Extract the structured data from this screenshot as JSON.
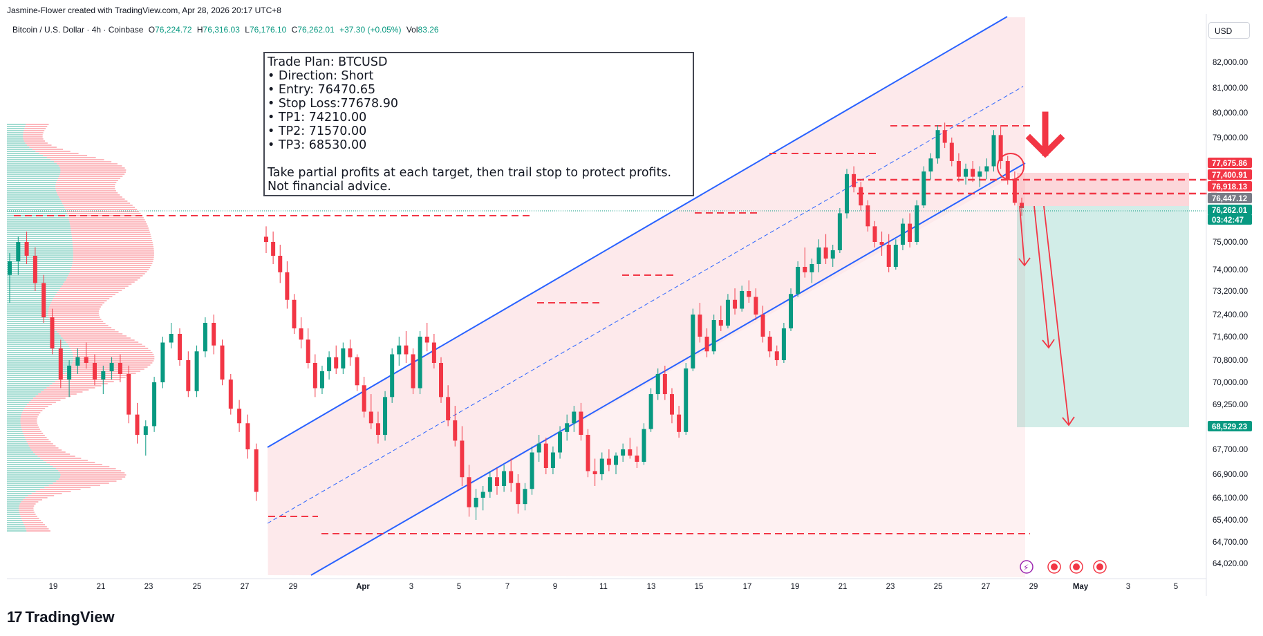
{
  "header": {
    "attribution": "Jasmine-Flower created with TradingView.com, Apr 28, 2026 20:17 UTC+8",
    "symbol": "Bitcoin / U.S. Dollar · 4h · Coinbase",
    "o_label": "O",
    "o": "76,224.72",
    "h_label": "H",
    "h": "76,316.03",
    "l_label": "L",
    "l": "76,176.10",
    "c_label": "C",
    "c": "76,262.01",
    "change": "+37.30 (+0.05%)",
    "vol_label": "Vol",
    "vol": "83.26",
    "currency": "USD"
  },
  "trade_plan": {
    "title": "Trade Plan: BTCUSD",
    "direction": "• Direction: Short",
    "entry": "• Entry: 76470.65",
    "stop": "• Stop Loss:77678.90",
    "tp1": "• TP1: 74210.00",
    "tp2": "• TP2: 71570.00",
    "tp3": "• TP3: 68530.00",
    "note1": "Take partial profits at each target, then trail stop to protect profits.",
    "note2": "Not financial advice."
  },
  "footer": {
    "brand": "TradingView"
  },
  "colors": {
    "up": "#089981",
    "down": "#f23645",
    "channel": "#2962ff",
    "zone_red": "#f23645",
    "zone_green": "#089981"
  },
  "chart_data": {
    "type": "candlestick",
    "timeframe": "4h",
    "y_ticks": [
      82000,
      81000,
      80000,
      79000,
      75000,
      74000,
      73200,
      72400,
      71600,
      70800,
      70000,
      69250,
      67700,
      66900,
      66100,
      65400,
      64700,
      64020
    ],
    "y_tick_labels": [
      "82,000.00",
      "81,000.00",
      "80,000.00",
      "79,000.00",
      "75,000.00",
      "74,000.00",
      "73,200.00",
      "72,400.00",
      "71,600.00",
      "70,800.00",
      "70,000.00",
      "69,250.00",
      "67,700.00",
      "66,900.00",
      "66,100.00",
      "65,400.00",
      "64,700.00",
      "64,020.00"
    ],
    "x_ticks": [
      "19",
      "21",
      "23",
      "25",
      "27",
      "29",
      "Apr",
      "3",
      "5",
      "7",
      "9",
      "11",
      "13",
      "15",
      "17",
      "19",
      "21",
      "23",
      "25",
      "27",
      "29",
      "May",
      "3",
      "5"
    ],
    "price_labels": [
      {
        "value": "77,675.86",
        "color": "#f23645"
      },
      {
        "value": "77,400.91",
        "color": "#f23645"
      },
      {
        "value": "76,918.13",
        "color": "#f23645"
      },
      {
        "value": "76,447.12",
        "color": "#787b86"
      },
      {
        "value": "76,262.01",
        "color": "#089981"
      },
      {
        "value": "03:42:47",
        "color": "#089981"
      },
      {
        "value": "68,529.23",
        "color": "#089981"
      }
    ],
    "levels": {
      "stop": 77678.9,
      "entry": 76470.65,
      "tp1": 74210,
      "tp2": 71570,
      "tp3": 68530,
      "last": 76262.01
    },
    "candles": [
      [
        75200,
        75600,
        74600,
        75000
      ],
      [
        75000,
        75400,
        74200,
        74500
      ],
      [
        74500,
        74900,
        73500,
        73900
      ],
      [
        73900,
        74300,
        72600,
        72900
      ],
      [
        72900,
        73100,
        71700,
        71900
      ],
      [
        71900,
        72300,
        71200,
        71500
      ],
      [
        71500,
        71900,
        70500,
        70700
      ],
      [
        70700,
        71000,
        69500,
        69800
      ],
      [
        69800,
        70600,
        69600,
        70400
      ],
      [
        70400,
        71100,
        70100,
        70900
      ],
      [
        70900,
        71300,
        70300,
        70500
      ],
      [
        70500,
        71400,
        70300,
        71200
      ],
      [
        71200,
        71500,
        70600,
        70900
      ],
      [
        70900,
        71000,
        69700,
        69900
      ],
      [
        69900,
        70200,
        68800,
        69000
      ],
      [
        69000,
        69600,
        68400,
        68600
      ],
      [
        68600,
        69000,
        67900,
        68200
      ],
      [
        68200,
        69700,
        68000,
        69500
      ],
      [
        69500,
        71200,
        69300,
        71000
      ],
      [
        71000,
        71600,
        70600,
        71300
      ],
      [
        71300,
        71800,
        70700,
        71000
      ],
      [
        71000,
        71200,
        69600,
        69800
      ],
      [
        69800,
        71800,
        69600,
        71600
      ],
      [
        71600,
        72100,
        71100,
        71400
      ],
      [
        71400,
        71700,
        70500,
        70700
      ],
      [
        70700,
        70900,
        69300,
        69500
      ],
      [
        69500,
        69900,
        68500,
        68700
      ],
      [
        68700,
        69200,
        67800,
        68000
      ],
      [
        68000,
        68500,
        66500,
        66800
      ],
      [
        66800,
        67200,
        65500,
        65800
      ],
      [
        65800,
        66400,
        65400,
        66100
      ],
      [
        66100,
        66500,
        65700,
        66300
      ],
      [
        66300,
        67000,
        66100,
        66800
      ],
      [
        66800,
        67100,
        66200,
        66500
      ],
      [
        66500,
        67200,
        66300,
        67000
      ],
      [
        67000,
        67400,
        66300,
        66600
      ],
      [
        66600,
        66900,
        65600,
        65900
      ],
      [
        65900,
        66600,
        65700,
        66400
      ],
      [
        66400,
        67800,
        66200,
        67600
      ],
      [
        67600,
        68200,
        67300,
        67900
      ],
      [
        67900,
        68100,
        66900,
        67100
      ],
      [
        67100,
        67800,
        66900,
        67600
      ],
      [
        67600,
        68500,
        67400,
        68300
      ],
      [
        68300,
        68900,
        68000,
        68600
      ],
      [
        68600,
        69200,
        68300,
        69000
      ],
      [
        69000,
        69300,
        68000,
        68200
      ],
      [
        68200,
        68400,
        66800,
        67000
      ],
      [
        67000,
        67400,
        66500,
        66900
      ],
      [
        66900,
        67600,
        66700,
        67400
      ],
      [
        67400,
        67700,
        67000,
        67200
      ],
      [
        67200,
        67600,
        66900,
        67500
      ],
      [
        67500,
        67900,
        67300,
        67700
      ],
      [
        67700,
        68100,
        67400,
        67500
      ],
      [
        67500,
        67800,
        67100,
        67300
      ],
      [
        67300,
        68600,
        67200,
        68400
      ],
      [
        68400,
        69800,
        68300,
        69600
      ],
      [
        69600,
        70500,
        69400,
        70300
      ],
      [
        70300,
        70600,
        69400,
        69600
      ],
      [
        69600,
        69800,
        68600,
        68900
      ],
      [
        68900,
        69200,
        68100,
        68300
      ],
      [
        68300,
        70700,
        68200,
        70500
      ],
      [
        70500,
        72600,
        70400,
        72400
      ],
      [
        72400,
        72800,
        71400,
        71600
      ],
      [
        71600,
        71900,
        70900,
        71100
      ],
      [
        71100,
        72400,
        71000,
        72200
      ],
      [
        72200,
        72700,
        71800,
        72000
      ],
      [
        72000,
        73100,
        71900,
        72900
      ],
      [
        72900,
        73300,
        72400,
        72600
      ],
      [
        72600,
        73400,
        72500,
        73200
      ],
      [
        73200,
        73600,
        72800,
        73000
      ],
      [
        73000,
        73300,
        72200,
        72400
      ],
      [
        72400,
        72700,
        71400,
        71600
      ],
      [
        71600,
        71800,
        70900,
        71100
      ],
      [
        71100,
        71300,
        70600,
        70800
      ],
      [
        70800,
        72100,
        70700,
        71900
      ],
      [
        71900,
        73300,
        71800,
        73100
      ],
      [
        73100,
        74300,
        73000,
        74100
      ],
      [
        74100,
        74800,
        73700,
        73900
      ],
      [
        73900,
        74400,
        73500,
        74200
      ],
      [
        74200,
        75100,
        73900,
        74800
      ],
      [
        74800,
        75300,
        74200,
        74400
      ],
      [
        74400,
        74900,
        74100,
        74700
      ],
      [
        74700,
        76300,
        74600,
        76100
      ],
      [
        76100,
        77800,
        75900,
        77600
      ],
      [
        77600,
        77900,
        76900,
        77100
      ],
      [
        77100,
        77300,
        76200,
        76400
      ],
      [
        76400,
        76600,
        75400,
        75600
      ],
      [
        75600,
        75800,
        74800,
        75000
      ],
      [
        75000,
        75400,
        74500,
        74900
      ],
      [
        74900,
        75300,
        73900,
        74100
      ],
      [
        74100,
        75100,
        74000,
        74900
      ],
      [
        74900,
        75900,
        74700,
        75700
      ],
      [
        75700,
        76100,
        74800,
        75000
      ],
      [
        75000,
        76600,
        74900,
        76400
      ],
      [
        76400,
        77900,
        76300,
        77700
      ],
      [
        77700,
        78400,
        77400,
        78200
      ],
      [
        78200,
        79500,
        78000,
        79300
      ],
      [
        79300,
        79600,
        78600,
        78800
      ],
      [
        78800,
        79000,
        77900,
        78100
      ],
      [
        78100,
        78400,
        77300,
        77500
      ],
      [
        77500,
        78000,
        77200,
        77800
      ],
      [
        77800,
        78100,
        77300,
        77500
      ],
      [
        77500,
        77900,
        77100,
        77700
      ],
      [
        77700,
        78200,
        77400,
        77900
      ],
      [
        77900,
        79300,
        77700,
        79100
      ],
      [
        79100,
        79500,
        77800,
        78100
      ],
      [
        78100,
        78300,
        77200,
        77400
      ],
      [
        77400,
        77700,
        76400,
        76500
      ],
      [
        76500,
        76700,
        76000,
        76300
      ]
    ]
  }
}
